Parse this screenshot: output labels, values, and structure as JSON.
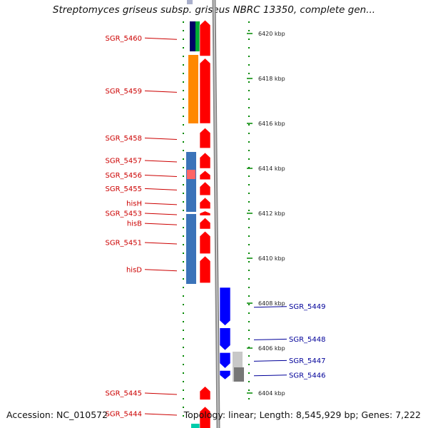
{
  "title": "Streptomyces griseus subsp. griseus NBRC 13350, complete gen...",
  "footer": {
    "accession": "Accession: NC_010572",
    "summary": "Topology: linear; Length: 8,545,929 bp; Genes: 7,222"
  },
  "colors": {
    "forward_gene": "#ff0000",
    "reverse_gene": "#0000ff",
    "left_label": "#cc0000",
    "right_label": "#000099",
    "tick": "#008800",
    "backbone": "#888888"
  },
  "axis": {
    "unit": "kbp",
    "ticks": [
      {
        "kbp": 6420,
        "label": "6420 kbp"
      },
      {
        "kbp": 6418,
        "label": "6418 kbp"
      },
      {
        "kbp": 6416,
        "label": "6416 kbp"
      },
      {
        "kbp": 6414,
        "label": "6414 kbp"
      },
      {
        "kbp": 6412,
        "label": "6412 kbp"
      },
      {
        "kbp": 6410,
        "label": "6410 kbp"
      },
      {
        "kbp": 6408,
        "label": "6408 kbp"
      },
      {
        "kbp": 6406,
        "label": "6406 kbp"
      },
      {
        "kbp": 6404,
        "label": "6404 kbp"
      }
    ]
  },
  "forward_genes": [
    {
      "name": "SGR_5460",
      "start_kbp": 6419.0,
      "end_kbp": 6420.6
    },
    {
      "name": "SGR_5459",
      "start_kbp": 6416.0,
      "end_kbp": 6418.9
    },
    {
      "name": "SGR_5458",
      "start_kbp": 6414.9,
      "end_kbp": 6415.8
    },
    {
      "name": "SGR_5457",
      "start_kbp": 6414.0,
      "end_kbp": 6414.7
    },
    {
      "name": "SGR_5456",
      "start_kbp": 6413.5,
      "end_kbp": 6413.9
    },
    {
      "name": "SGR_5455",
      "start_kbp": 6412.8,
      "end_kbp": 6413.4
    },
    {
      "name": "hisH",
      "start_kbp": 6412.2,
      "end_kbp": 6412.7
    },
    {
      "name": "SGR_5453",
      "start_kbp": 6411.9,
      "end_kbp": 6412.1
    },
    {
      "name": "hisB",
      "start_kbp": 6411.3,
      "end_kbp": 6411.8
    },
    {
      "name": "SGR_5451",
      "start_kbp": 6410.2,
      "end_kbp": 6411.2
    },
    {
      "name": "hisD",
      "start_kbp": 6408.9,
      "end_kbp": 6410.1
    },
    {
      "name": "SGR_5445",
      "start_kbp": 6403.7,
      "end_kbp": 6404.3
    },
    {
      "name": "SGR_5444",
      "start_kbp": 6402.4,
      "end_kbp": 6403.4
    }
  ],
  "reverse_genes": [
    {
      "name": "SGR_5449",
      "start_kbp": 6407.0,
      "end_kbp": 6408.7
    },
    {
      "name": "SGR_5448",
      "start_kbp": 6405.9,
      "end_kbp": 6406.9
    },
    {
      "name": "SGR_5447",
      "start_kbp": 6405.1,
      "end_kbp": 6405.8
    },
    {
      "name": "SGR_5446",
      "start_kbp": 6404.6,
      "end_kbp": 6405.0
    }
  ],
  "left_label_genes": [
    "SGR_5460",
    "SGR_5459",
    "SGR_5458",
    "SGR_5457",
    "SGR_5456",
    "SGR_5455",
    "hisH",
    "SGR_5453",
    "hisB",
    "SGR_5451",
    "hisD",
    "SGR_5445",
    "SGR_5444"
  ],
  "right_label_genes": [
    "SGR_5449",
    "SGR_5448",
    "SGR_5447",
    "SGR_5446"
  ]
}
